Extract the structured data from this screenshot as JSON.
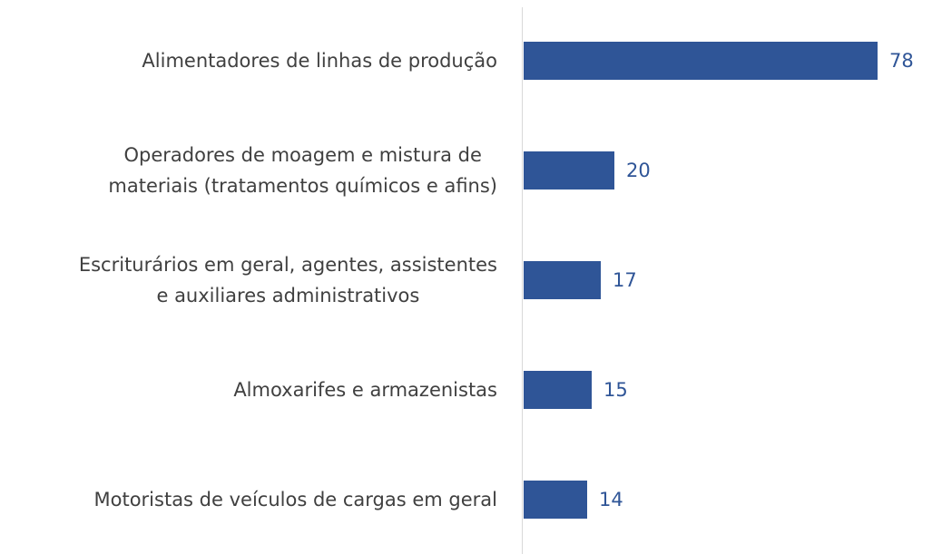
{
  "chart_data": {
    "type": "barh",
    "categories": [
      "Alimentadores de linhas de produção",
      "Operadores de moagem e mistura de\nmateriais (tratamentos químicos e afins)",
      "Escriturários em geral, agentes, assistentes\ne auxiliares administrativos",
      "Almoxarifes e armazenistas",
      "Motoristas de veículos de cargas em geral"
    ],
    "values": [
      78,
      20,
      17,
      15,
      14
    ],
    "color": "#2f5597"
  }
}
